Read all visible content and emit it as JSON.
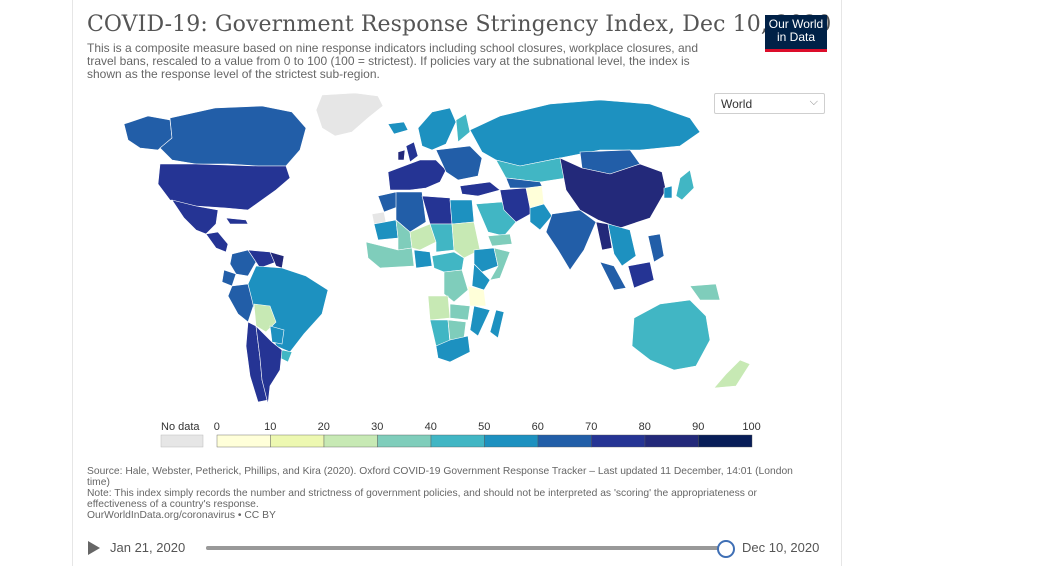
{
  "header": {
    "title": "COVID-19: Government Response Stringency Index, Dec 10, 2020",
    "subtitle": "This is a composite measure based on nine response indicators including school closures, workplace closures, and travel bans, rescaled to a value from 0 to 100 (100 = strictest). If policies vary at the subnational level, the index is shown as the response level of the strictest sub-region.",
    "logo_line1": "Our World",
    "logo_line2": "in Data"
  },
  "region_selector": {
    "value": "World"
  },
  "legend": {
    "no_data_label": "No data",
    "ticks": [
      "0",
      "10",
      "20",
      "30",
      "40",
      "50",
      "60",
      "70",
      "80",
      "90",
      "100"
    ],
    "no_data_color": "#e6e6e6",
    "colors": [
      "#ffffd9",
      "#edf8b1",
      "#c7e9b4",
      "#7fcdbb",
      "#41b6c4",
      "#1d91c0",
      "#225ea8",
      "#253494",
      "#23297a",
      "#081d58"
    ]
  },
  "map": {
    "title": "",
    "regions": [
      {
        "name": "Greenland",
        "band": -1
      },
      {
        "name": "Canada",
        "band": 6
      },
      {
        "name": "Alaska",
        "band": 6
      },
      {
        "name": "United States",
        "band": 7
      },
      {
        "name": "Mexico",
        "band": 7
      },
      {
        "name": "Central America",
        "band": 7
      },
      {
        "name": "Cuba",
        "band": 7
      },
      {
        "name": "Colombia",
        "band": 6
      },
      {
        "name": "Venezuela",
        "band": 7
      },
      {
        "name": "Guyana",
        "band": 8
      },
      {
        "name": "Ecuador",
        "band": 6
      },
      {
        "name": "Peru",
        "band": 6
      },
      {
        "name": "Brazil",
        "band": 5
      },
      {
        "name": "Bolivia",
        "band": 2
      },
      {
        "name": "Paraguay",
        "band": 5
      },
      {
        "name": "Uruguay",
        "band": 4
      },
      {
        "name": "Chile",
        "band": 7
      },
      {
        "name": "Argentina",
        "band": 7
      },
      {
        "name": "Iceland",
        "band": 5
      },
      {
        "name": "Scandinavia",
        "band": 5
      },
      {
        "name": "Finland",
        "band": 4
      },
      {
        "name": "United Kingdom",
        "band": 7
      },
      {
        "name": "Ireland",
        "band": 8
      },
      {
        "name": "Western Europe",
        "band": 7
      },
      {
        "name": "Eastern Europe",
        "band": 6
      },
      {
        "name": "Russia",
        "band": 5
      },
      {
        "name": "Turkey",
        "band": 7
      },
      {
        "name": "Morocco",
        "band": 6
      },
      {
        "name": "Algeria",
        "band": 6
      },
      {
        "name": "Libya",
        "band": 7
      },
      {
        "name": "Egypt",
        "band": 5
      },
      {
        "name": "Western Sahara",
        "band": -1
      },
      {
        "name": "Mauritania",
        "band": 5
      },
      {
        "name": "Mali",
        "band": 3
      },
      {
        "name": "Niger",
        "band": 2
      },
      {
        "name": "Chad",
        "band": 4
      },
      {
        "name": "Sudan",
        "band": 2
      },
      {
        "name": "West Africa",
        "band": 3
      },
      {
        "name": "Nigeria",
        "band": 5
      },
      {
        "name": "Ethiopia",
        "band": 5
      },
      {
        "name": "Somalia",
        "band": 3
      },
      {
        "name": "Central Africa",
        "band": 4
      },
      {
        "name": "DR Congo",
        "band": 3
      },
      {
        "name": "Kenya",
        "band": 5
      },
      {
        "name": "Tanzania",
        "band": 0
      },
      {
        "name": "Angola",
        "band": 2
      },
      {
        "name": "Zambia",
        "band": 3
      },
      {
        "name": "Mozambique",
        "band": 5
      },
      {
        "name": "Namibia",
        "band": 4
      },
      {
        "name": "Botswana",
        "band": 3
      },
      {
        "name": "South Africa",
        "band": 5
      },
      {
        "name": "Madagascar",
        "band": 5
      },
      {
        "name": "Saudi Arabia",
        "band": 4
      },
      {
        "name": "Yemen",
        "band": 3
      },
      {
        "name": "Iran",
        "band": 7
      },
      {
        "name": "Afghanistan",
        "band": 0
      },
      {
        "name": "Pakistan",
        "band": 5
      },
      {
        "name": "Kazakhstan",
        "band": 4
      },
      {
        "name": "Central Asia",
        "band": 6
      },
      {
        "name": "India",
        "band": 6
      },
      {
        "name": "Mongolia",
        "band": 6
      },
      {
        "name": "China",
        "band": 8
      },
      {
        "name": "Myanmar",
        "band": 8
      },
      {
        "name": "Southeast Asia",
        "band": 5
      },
      {
        "name": "Japan",
        "band": 4
      },
      {
        "name": "South Korea",
        "band": 5
      },
      {
        "name": "Philippines",
        "band": 6
      },
      {
        "name": "Borneo",
        "band": 7
      },
      {
        "name": "Sumatra",
        "band": 6
      },
      {
        "name": "Papua New Guinea",
        "band": 3
      },
      {
        "name": "Australia",
        "band": 4
      },
      {
        "name": "New Zealand",
        "band": 2
      }
    ]
  },
  "footer": {
    "source": "Source: Hale, Webster, Petherick, Phillips, and Kira (2020). Oxford COVID-19 Government Response Tracker – Last updated 11 December, 14:01 (London time)",
    "note": "Note: This index simply records the number and strictness of government policies, and should not be interpreted as 'scoring' the appropriateness or effectiveness of a country's response.",
    "link": "OurWorldInData.org/coronavirus • CC BY"
  },
  "timeline": {
    "start_date": "Jan 21, 2020",
    "end_date": "Dec 10, 2020",
    "position": 1.0
  }
}
